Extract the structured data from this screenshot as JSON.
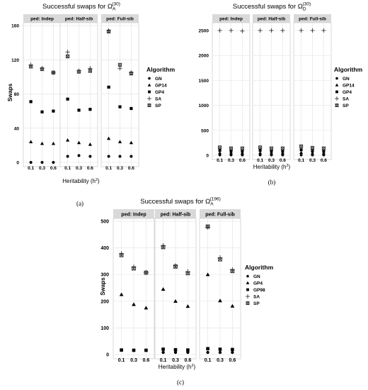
{
  "chart_data": [
    {
      "type": "scatter",
      "title": "Successful swaps for Ω",
      "title_sup": "(30)",
      "title_sub": "A",
      "ylabel": "Swaps",
      "xlabel": "Heritability (h",
      "xlabel_sup": "2",
      "xlabel_end": ")",
      "ylim": [
        0,
        160
      ],
      "yticks": [
        0,
        40,
        80,
        120,
        160
      ],
      "xticks": [
        "0.1",
        "0.3",
        "0.6"
      ],
      "legend_title": "Algorithm",
      "legend_position": "right",
      "caption": "(a)",
      "grid": true,
      "legend": [
        {
          "name": "GN",
          "marker": "circle"
        },
        {
          "name": "GP14",
          "marker": "triangle"
        },
        {
          "name": "GP4",
          "marker": "square"
        },
        {
          "name": "SA",
          "marker": "plus"
        },
        {
          "name": "SP",
          "marker": "boxx"
        }
      ],
      "panels": [
        {
          "label": "ped: Indep",
          "series": [
            {
              "name": "GN",
              "marker": "circle",
              "values": [
                0,
                0,
                0
              ]
            },
            {
              "name": "GP14",
              "marker": "triangle",
              "values": [
                24,
                22,
                22
              ]
            },
            {
              "name": "GP4",
              "marker": "square",
              "values": [
                71,
                59,
                60
              ]
            },
            {
              "name": "SA",
              "marker": "plus",
              "values": [
                114,
                110,
                105
              ]
            },
            {
              "name": "SP",
              "marker": "boxx",
              "values": [
                112,
                109,
                105
              ]
            }
          ]
        },
        {
          "label": "ped: Half-sib",
          "series": [
            {
              "name": "GN",
              "marker": "circle",
              "values": [
                7,
                8,
                7
              ]
            },
            {
              "name": "GP14",
              "marker": "triangle",
              "values": [
                26,
                23,
                21
              ]
            },
            {
              "name": "GP4",
              "marker": "square",
              "values": [
                74,
                61,
                62
              ]
            },
            {
              "name": "SA",
              "marker": "plus",
              "values": [
                129,
                107,
                110
              ]
            },
            {
              "name": "SP",
              "marker": "boxx",
              "values": [
                124,
                106,
                107
              ]
            }
          ]
        },
        {
          "label": "ped: Full-sib",
          "series": [
            {
              "name": "GN",
              "marker": "circle",
              "values": [
                7,
                7,
                7
              ]
            },
            {
              "name": "GP14",
              "marker": "triangle",
              "values": [
                28,
                24,
                23
              ]
            },
            {
              "name": "GP4",
              "marker": "square",
              "values": [
                88,
                65,
                63
              ]
            },
            {
              "name": "SA",
              "marker": "plus",
              "values": [
                154,
                110,
                105
              ]
            },
            {
              "name": "SP",
              "marker": "boxx",
              "values": [
                153,
                114,
                104
              ]
            }
          ]
        }
      ]
    },
    {
      "type": "scatter",
      "title": "Successful swaps for Ω",
      "title_sup": "(30)",
      "title_sub": "D",
      "ylabel": "",
      "xlabel": "Heritability (h",
      "xlabel_sup": "2",
      "xlabel_end": ")",
      "ylim": [
        0,
        2600
      ],
      "yticks": [
        0,
        500,
        1000,
        1500,
        2000,
        2500
      ],
      "xticks": [
        "0.1",
        "0.3",
        "0.6"
      ],
      "legend_title": "Algorithm",
      "legend_position": "right",
      "caption": "(b)",
      "grid": true,
      "legend": [
        {
          "name": "GN",
          "marker": "circle"
        },
        {
          "name": "GP14",
          "marker": "triangle"
        },
        {
          "name": "GP4",
          "marker": "square"
        },
        {
          "name": "SA",
          "marker": "plus"
        },
        {
          "name": "SP",
          "marker": "boxx"
        }
      ],
      "panels": [
        {
          "label": "ped: Indep",
          "series": [
            {
              "name": "GN",
              "marker": "circle",
              "values": [
                5,
                5,
                5
              ]
            },
            {
              "name": "GP14",
              "marker": "triangle",
              "values": [
                50,
                45,
                45
              ]
            },
            {
              "name": "GP4",
              "marker": "square",
              "values": [
                100,
                80,
                80
              ]
            },
            {
              "name": "SA",
              "marker": "plus",
              "values": [
                2500,
                2500,
                2490
              ]
            },
            {
              "name": "SP",
              "marker": "boxx",
              "values": [
                160,
                140,
                140
              ]
            }
          ]
        },
        {
          "label": "ped: Half-sib",
          "series": [
            {
              "name": "GN",
              "marker": "circle",
              "values": [
                5,
                5,
                5
              ]
            },
            {
              "name": "GP14",
              "marker": "triangle",
              "values": [
                50,
                45,
                45
              ]
            },
            {
              "name": "GP4",
              "marker": "square",
              "values": [
                100,
                80,
                80
              ]
            },
            {
              "name": "SA",
              "marker": "plus",
              "values": [
                2500,
                2500,
                2500
              ]
            },
            {
              "name": "SP",
              "marker": "boxx",
              "values": [
                160,
                140,
                140
              ]
            }
          ]
        },
        {
          "label": "ped: Full-sib",
          "series": [
            {
              "name": "GN",
              "marker": "circle",
              "values": [
                5,
                5,
                5
              ]
            },
            {
              "name": "GP14",
              "marker": "triangle",
              "values": [
                55,
                45,
                45
              ]
            },
            {
              "name": "GP4",
              "marker": "square",
              "values": [
                110,
                85,
                80
              ]
            },
            {
              "name": "SA",
              "marker": "plus",
              "values": [
                2500,
                2500,
                2500
              ]
            },
            {
              "name": "SP",
              "marker": "boxx",
              "values": [
                180,
                150,
                140
              ]
            }
          ]
        }
      ]
    },
    {
      "type": "scatter",
      "title": "Successful swaps for Ω",
      "title_sup": "(196)",
      "title_sub": "A",
      "ylabel": "Swaps",
      "xlabel": "Heritability (h",
      "xlabel_sup": "2",
      "xlabel_end": ")",
      "ylim": [
        0,
        500
      ],
      "yticks": [
        0,
        100,
        200,
        300,
        400,
        500
      ],
      "xticks": [
        "0.1",
        "0.3",
        "0.6"
      ],
      "legend_title": "Algorithm",
      "legend_position": "right",
      "caption": "(c)",
      "grid": true,
      "legend": [
        {
          "name": "GN",
          "marker": "circle"
        },
        {
          "name": "GP4",
          "marker": "triangle"
        },
        {
          "name": "GP98",
          "marker": "square"
        },
        {
          "name": "SA",
          "marker": "plus"
        },
        {
          "name": "SP",
          "marker": "boxx"
        }
      ],
      "panels": [
        {
          "label": "ped: Indep",
          "series": [
            {
              "name": "GN",
              "marker": "circle",
              "values": [
                16,
                16,
                16
              ]
            },
            {
              "name": "GP4",
              "marker": "triangle",
              "values": [
                225,
                188,
                175
              ]
            },
            {
              "name": "GP98",
              "marker": "square",
              "values": [
                17,
                16,
                16
              ]
            },
            {
              "name": "SA",
              "marker": "plus",
              "values": [
                378,
                328,
                308
              ]
            },
            {
              "name": "SP",
              "marker": "boxx",
              "values": [
                373,
                323,
                307
              ]
            }
          ]
        },
        {
          "label": "ped: Half-sib",
          "series": [
            {
              "name": "GN",
              "marker": "circle",
              "values": [
                8,
                8,
                8
              ]
            },
            {
              "name": "GP4",
              "marker": "triangle",
              "values": [
                245,
                200,
                181
              ]
            },
            {
              "name": "GP98",
              "marker": "square",
              "values": [
                20,
                18,
                17
              ]
            },
            {
              "name": "SA",
              "marker": "plus",
              "values": [
                408,
                333,
                311
              ]
            },
            {
              "name": "SP",
              "marker": "boxx",
              "values": [
                403,
                330,
                305
              ]
            }
          ]
        },
        {
          "label": "ped: Full-sib",
          "series": [
            {
              "name": "GN",
              "marker": "circle",
              "values": [
                8,
                8,
                8
              ]
            },
            {
              "name": "GP4",
              "marker": "triangle",
              "values": [
                300,
                202,
                182
              ]
            },
            {
              "name": "GP98",
              "marker": "square",
              "values": [
                22,
                20,
                19
              ]
            },
            {
              "name": "SA",
              "marker": "plus",
              "values": [
                478,
                363,
                318
              ]
            },
            {
              "name": "SP",
              "marker": "boxx",
              "values": [
                480,
                357,
                313
              ]
            }
          ]
        }
      ]
    }
  ]
}
